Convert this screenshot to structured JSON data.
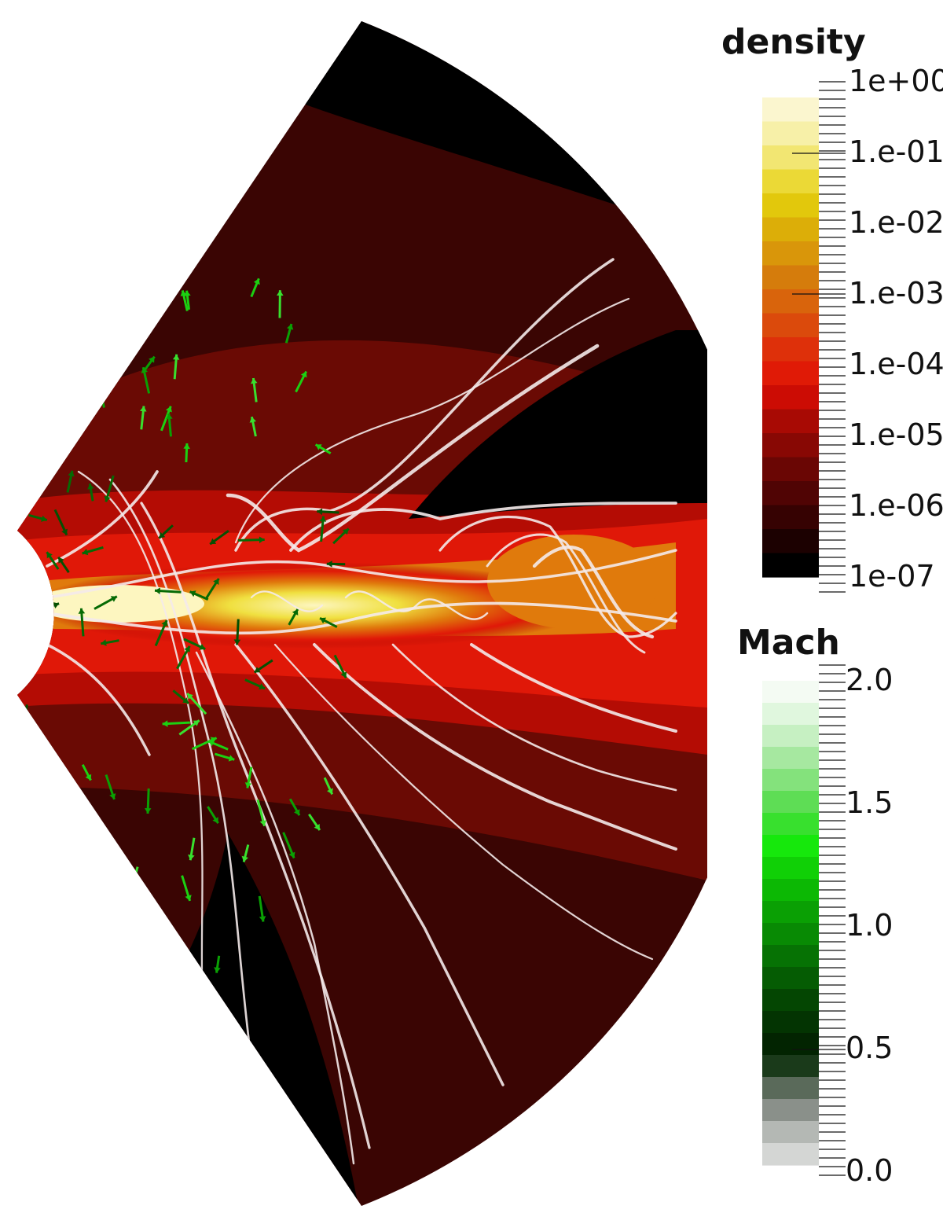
{
  "density_bar": {
    "title": "density",
    "labels": [
      "1e+00",
      "1.e-01",
      "1.e-02",
      "1.e-03",
      "1.e-04",
      "1.e-05",
      "1.e-06",
      "1e-07"
    ],
    "colors": [
      "#fbf6cf",
      "#f7f0a8",
      "#f2e672",
      "#ebd936",
      "#e2c80c",
      "#dcae08",
      "#d9960a",
      "#d57c0c",
      "#d9640c",
      "#db4a0c",
      "#de300a",
      "#e01a06",
      "#cc0c04",
      "#a80a04",
      "#880804",
      "#6a0604",
      "#500404",
      "#360202",
      "#1c0101",
      "#000000"
    ]
  },
  "mach_bar": {
    "title": "Mach",
    "labels": [
      "2.0",
      "1.5",
      "1.0",
      "0.5",
      "0.0"
    ],
    "colors": [
      "#f4fbf3",
      "#e0f7de",
      "#c6f0c2",
      "#a6e8a0",
      "#84e27c",
      "#5edd55",
      "#38e02e",
      "#16e80c",
      "#10d006",
      "#0cb804",
      "#0aa004",
      "#088a04",
      "#067204",
      "#055c03",
      "#044602",
      "#033402",
      "#022401",
      "#1a3a1a",
      "#5a6a5a",
      "#8a908a",
      "#b4b8b4",
      "#d4d6d4"
    ]
  },
  "fan": {
    "colors": {
      "dark": "#000000",
      "outer": "#3a0503",
      "mid": "#6a0a04",
      "red": "#b40c04",
      "bright_red": "#e01808",
      "orange": "#e07a0c",
      "yellow": "#f0e040",
      "core": "#fdf6c0"
    }
  },
  "arrows": {
    "colors": [
      "#0aa004",
      "#1cd012",
      "#38e02e",
      "#066a04",
      "#045002",
      "#7fe07a",
      "#dde4dd"
    ]
  },
  "streamlines": {
    "color": "#f4eaea"
  }
}
